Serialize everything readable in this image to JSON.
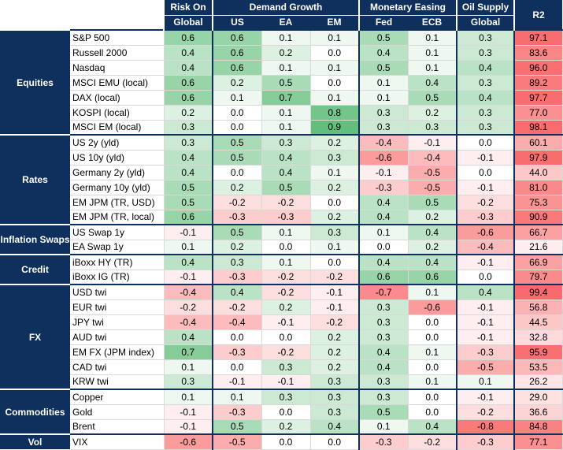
{
  "chart_data": {
    "type": "table",
    "title": "",
    "header_groups": [
      {
        "label": "Risk On",
        "span": 1
      },
      {
        "label": "Demand Growth",
        "span": 3
      },
      {
        "label": "Monetary Easing",
        "span": 2
      },
      {
        "label": "Oil Supply",
        "span": 1
      },
      {
        "label": "R2",
        "span": 1
      }
    ],
    "columns": [
      "Global",
      "US",
      "EA",
      "EM",
      "Fed",
      "ECB",
      "Global"
    ],
    "r2_label": "R2",
    "groups": [
      {
        "name": "Equities",
        "rows": [
          {
            "label": "S&P 500",
            "values": [
              0.6,
              0.6,
              0.1,
              0.1,
              0.5,
              0.1,
              0.3
            ],
            "r2": 97.1
          },
          {
            "label": "Russell 2000",
            "values": [
              0.4,
              0.6,
              0.2,
              0.0,
              0.4,
              0.1,
              0.3
            ],
            "r2": 83.6
          },
          {
            "label": "Nasdaq",
            "values": [
              0.4,
              0.6,
              0.1,
              0.1,
              0.5,
              0.1,
              0.4
            ],
            "r2": 96.0
          },
          {
            "label": "MSCI EMU (local)",
            "values": [
              0.6,
              0.2,
              0.5,
              0.0,
              0.1,
              0.4,
              0.3
            ],
            "r2": 89.2
          },
          {
            "label": "DAX (local)",
            "values": [
              0.6,
              0.1,
              0.7,
              0.1,
              0.1,
              0.5,
              0.4
            ],
            "r2": 97.7
          },
          {
            "label": "KOSPI (local)",
            "values": [
              0.2,
              0.0,
              0.1,
              0.8,
              0.3,
              0.2,
              0.3
            ],
            "r2": 77.0
          },
          {
            "label": "MSCI EM (local)",
            "values": [
              0.3,
              0.0,
              0.1,
              0.9,
              0.3,
              0.3,
              0.3
            ],
            "r2": 98.1
          }
        ]
      },
      {
        "name": "Rates",
        "rows": [
          {
            "label": "US 2y (yld)",
            "values": [
              0.3,
              0.5,
              0.3,
              0.2,
              -0.4,
              -0.1,
              0.0
            ],
            "r2": 60.1
          },
          {
            "label": "US 10y (yld)",
            "values": [
              0.4,
              0.5,
              0.4,
              0.3,
              -0.6,
              -0.4,
              -0.1
            ],
            "r2": 97.9
          },
          {
            "label": "Germany 2y (yld)",
            "values": [
              0.4,
              0.0,
              0.4,
              0.1,
              -0.1,
              -0.5,
              0.0
            ],
            "r2": 44.0
          },
          {
            "label": "Germany 10y (yld)",
            "values": [
              0.5,
              0.2,
              0.5,
              0.2,
              -0.3,
              -0.5,
              -0.1
            ],
            "r2": 81.0
          },
          {
            "label": "EM JPM (TR, USD)",
            "values": [
              0.5,
              -0.2,
              -0.2,
              0.0,
              0.4,
              0.5,
              -0.2
            ],
            "r2": 75.3
          },
          {
            "label": "EM JPM (TR, local)",
            "values": [
              0.6,
              -0.3,
              -0.3,
              0.2,
              0.4,
              0.2,
              -0.3
            ],
            "r2": 90.9
          }
        ]
      },
      {
        "name": "Inflation Swaps",
        "rows": [
          {
            "label": "US Swap 1y",
            "values": [
              -0.1,
              0.5,
              0.1,
              0.3,
              0.1,
              0.4,
              -0.6
            ],
            "r2": 66.7
          },
          {
            "label": "EA Swap 1y",
            "values": [
              0.1,
              0.2,
              0.0,
              0.1,
              0.0,
              0.2,
              -0.4
            ],
            "r2": 21.6
          }
        ]
      },
      {
        "name": "Credit",
        "rows": [
          {
            "label": "iBoxx HY (TR)",
            "values": [
              0.4,
              0.3,
              0.1,
              0.0,
              0.4,
              0.4,
              -0.1
            ],
            "r2": 66.9
          },
          {
            "label": "iBoxx IG (TR)",
            "values": [
              -0.1,
              -0.3,
              -0.2,
              -0.2,
              0.6,
              0.6,
              0.0
            ],
            "r2": 79.7
          }
        ]
      },
      {
        "name": "FX",
        "rows": [
          {
            "label": "USD twi",
            "values": [
              -0.4,
              0.4,
              -0.2,
              -0.1,
              -0.7,
              0.1,
              0.4
            ],
            "r2": 99.4
          },
          {
            "label": "EUR twi",
            "values": [
              -0.2,
              -0.2,
              0.2,
              -0.1,
              0.3,
              -0.6,
              -0.1
            ],
            "r2": 56.8
          },
          {
            "label": "JPY twi",
            "values": [
              -0.4,
              -0.4,
              -0.1,
              -0.2,
              0.3,
              0.0,
              -0.1
            ],
            "r2": 44.5
          },
          {
            "label": "AUD twi",
            "values": [
              0.4,
              0.0,
              0.0,
              0.2,
              0.3,
              0.0,
              -0.1
            ],
            "r2": 32.8
          },
          {
            "label": "EM FX (JPM index)",
            "values": [
              0.7,
              -0.3,
              -0.2,
              0.2,
              0.4,
              0.1,
              -0.3
            ],
            "r2": 95.9
          },
          {
            "label": "CAD twi",
            "values": [
              0.1,
              0.0,
              0.3,
              0.2,
              0.4,
              0.0,
              -0.5
            ],
            "r2": 53.5
          },
          {
            "label": "KRW twi",
            "values": [
              0.3,
              -0.1,
              -0.1,
              0.3,
              0.3,
              0.1,
              0.1
            ],
            "r2": 26.2
          }
        ]
      },
      {
        "name": "Commodities",
        "rows": [
          {
            "label": "Copper",
            "values": [
              0.1,
              0.1,
              0.3,
              0.3,
              0.3,
              0.0,
              -0.1
            ],
            "r2": 29.0
          },
          {
            "label": "Gold",
            "values": [
              -0.1,
              -0.3,
              0.0,
              0.3,
              0.5,
              0.0,
              -0.2
            ],
            "r2": 36.6
          },
          {
            "label": "Brent",
            "values": [
              -0.1,
              0.5,
              0.2,
              0.4,
              0.1,
              0.4,
              -0.8
            ],
            "r2": 84.8
          }
        ]
      },
      {
        "name": "Vol",
        "rows": [
          {
            "label": "VIX",
            "values": [
              -0.6,
              -0.5,
              0.0,
              0.0,
              -0.3,
              -0.2,
              -0.3
            ],
            "r2": 77.1
          }
        ]
      }
    ],
    "colors": {
      "header_bg": "#0f2f5c",
      "header_text": "#ffffff",
      "positive": "#63be7b",
      "negative": "#f8696b",
      "neutral": "#ffffff"
    }
  }
}
